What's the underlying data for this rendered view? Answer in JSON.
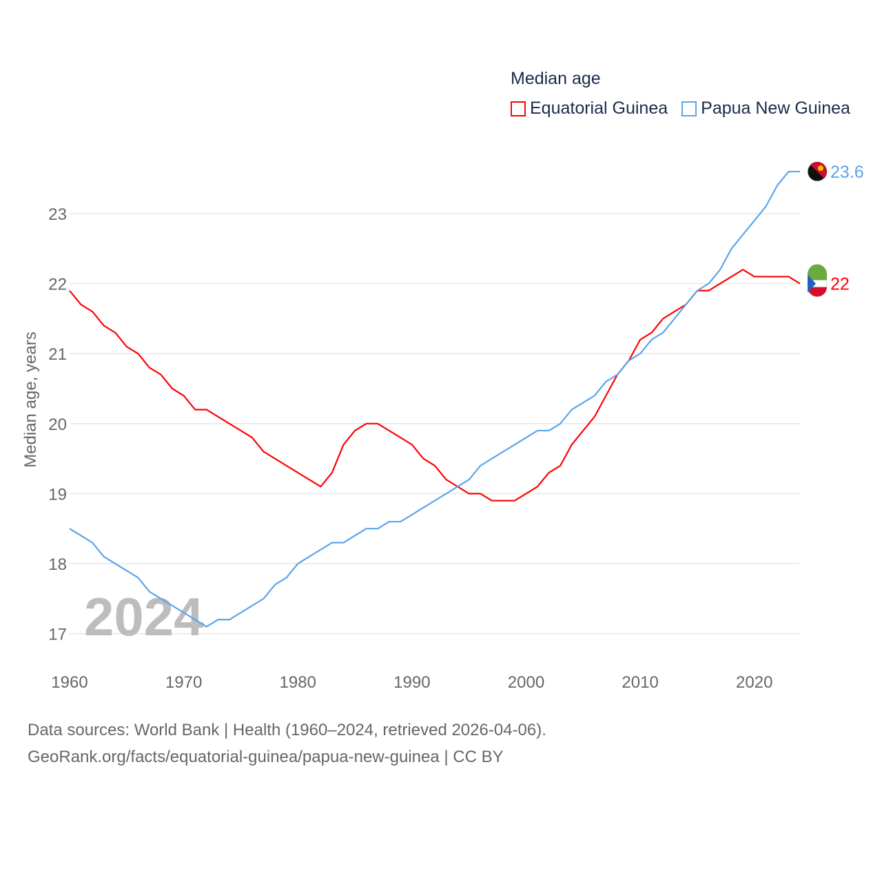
{
  "chart_data": {
    "type": "line",
    "title": "Median age",
    "xlabel": "",
    "ylabel": "Median age, years",
    "xlim": [
      1960,
      2024
    ],
    "ylim": [
      16.6,
      23.8
    ],
    "grid": true,
    "legend_position": "top-right",
    "x_ticks": [
      1960,
      1970,
      1980,
      1990,
      2000,
      2010,
      2020
    ],
    "y_ticks": [
      17,
      18,
      19,
      20,
      21,
      22,
      23
    ],
    "watermark_year": "2024",
    "x": [
      1960,
      1961,
      1962,
      1963,
      1964,
      1965,
      1966,
      1967,
      1968,
      1969,
      1970,
      1971,
      1972,
      1973,
      1974,
      1975,
      1976,
      1977,
      1978,
      1979,
      1980,
      1981,
      1982,
      1983,
      1984,
      1985,
      1986,
      1987,
      1988,
      1989,
      1990,
      1991,
      1992,
      1993,
      1994,
      1995,
      1996,
      1997,
      1998,
      1999,
      2000,
      2001,
      2002,
      2003,
      2004,
      2005,
      2006,
      2007,
      2008,
      2009,
      2010,
      2011,
      2012,
      2013,
      2014,
      2015,
      2016,
      2017,
      2018,
      2019,
      2020,
      2021,
      2022,
      2023,
      2024
    ],
    "series": [
      {
        "name": "Equatorial Guinea",
        "color": "#ff0000",
        "end_label": "22",
        "values": [
          21.9,
          21.7,
          21.6,
          21.4,
          21.3,
          21.1,
          21.0,
          20.8,
          20.7,
          20.5,
          20.4,
          20.2,
          20.2,
          20.1,
          20.0,
          19.9,
          19.8,
          19.6,
          19.5,
          19.4,
          19.3,
          19.2,
          19.1,
          19.3,
          19.7,
          19.9,
          20.0,
          20.0,
          19.9,
          19.8,
          19.7,
          19.5,
          19.4,
          19.2,
          19.1,
          19.0,
          19.0,
          18.9,
          18.9,
          18.9,
          19.0,
          19.1,
          19.3,
          19.4,
          19.7,
          19.9,
          20.1,
          20.4,
          20.7,
          20.9,
          21.2,
          21.3,
          21.5,
          21.6,
          21.7,
          21.9,
          21.9,
          22.0,
          22.1,
          22.2,
          22.1,
          22.1,
          22.1,
          22.1,
          22.0
        ]
      },
      {
        "name": "Papua New Guinea",
        "color": "#5ba4ea",
        "end_label": "23.6",
        "values": [
          18.5,
          18.4,
          18.3,
          18.1,
          18.0,
          17.9,
          17.8,
          17.6,
          17.5,
          17.4,
          17.3,
          17.2,
          17.1,
          17.2,
          17.2,
          17.3,
          17.4,
          17.5,
          17.7,
          17.8,
          18.0,
          18.1,
          18.2,
          18.3,
          18.3,
          18.4,
          18.5,
          18.5,
          18.6,
          18.6,
          18.7,
          18.8,
          18.9,
          19.0,
          19.1,
          19.2,
          19.4,
          19.5,
          19.6,
          19.7,
          19.8,
          19.9,
          19.9,
          20.0,
          20.2,
          20.3,
          20.4,
          20.6,
          20.7,
          20.9,
          21.0,
          21.2,
          21.3,
          21.5,
          21.7,
          21.9,
          22.0,
          22.2,
          22.5,
          22.7,
          22.9,
          23.1,
          23.4,
          23.6,
          23.6
        ]
      }
    ]
  },
  "source": {
    "line1": "Data sources: World Bank | Health (1960–2024, retrieved 2026-04-06).",
    "line2": "GeoRank.org/facts/equatorial-guinea/papua-new-guinea | CC BY"
  }
}
